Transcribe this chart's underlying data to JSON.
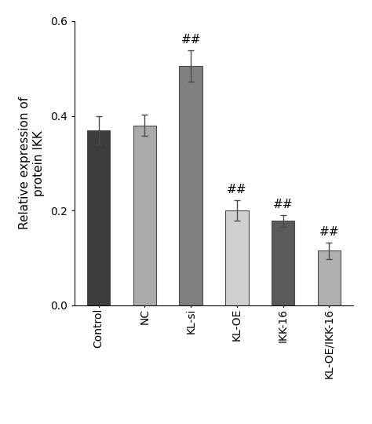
{
  "categories": [
    "Control",
    "NC",
    "KL-si",
    "KL-OE",
    "IKK-16",
    "KL-OE/IKK-16"
  ],
  "values": [
    0.37,
    0.38,
    0.505,
    0.2,
    0.178,
    0.115
  ],
  "errors": [
    0.03,
    0.022,
    0.033,
    0.022,
    0.013,
    0.018
  ],
  "bar_colors": [
    "#3c3c3c",
    "#aaaaaa",
    "#808080",
    "#d0d0d0",
    "#5a5a5a",
    "#b0b0b0"
  ],
  "significance": [
    false,
    false,
    true,
    true,
    true,
    true
  ],
  "sig_label": "##",
  "ylabel_line1": "Relative expression of",
  "ylabel_line2": "protein IKK",
  "ylim": [
    0.0,
    0.6
  ],
  "yticks": [
    0.0,
    0.2,
    0.4,
    0.6
  ],
  "bar_width": 0.5,
  "capsize": 3,
  "background_color": "#ffffff",
  "edge_color": "#4a4a4a",
  "ylabel_fontsize": 11,
  "tick_fontsize": 10,
  "sig_fontsize": 11
}
